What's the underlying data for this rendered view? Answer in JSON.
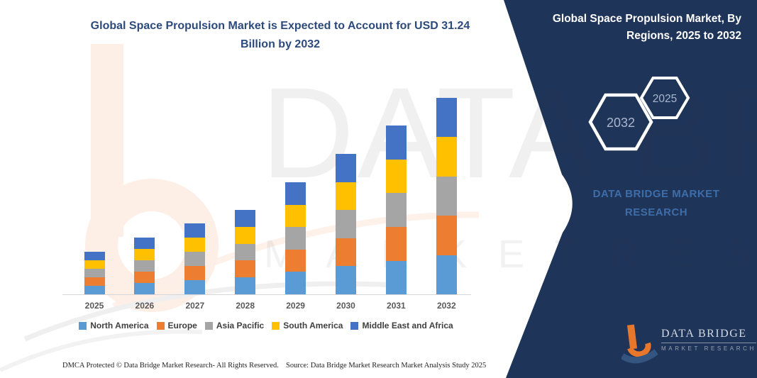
{
  "page": {
    "title_line1": "Global Space Propulsion Market is Expected to Account for USD 31.24",
    "title_line2": "Billion by 2032"
  },
  "chart_data": {
    "type": "bar",
    "stacked": true,
    "title": "Global Space Propulsion Market is Expected to Account for USD 31.24 Billion by 2032",
    "unit": "USD Billion",
    "categories": [
      "2025",
      "2026",
      "2027",
      "2028",
      "2029",
      "2030",
      "2031",
      "2032"
    ],
    "series": [
      {
        "name": "North America",
        "color": "#5B9BD5",
        "values": [
          1.35,
          1.8,
          2.25,
          2.68,
          3.55,
          4.45,
          5.35,
          6.25
        ]
      },
      {
        "name": "Europe",
        "color": "#ED7D31",
        "values": [
          1.35,
          1.8,
          2.25,
          2.68,
          3.55,
          4.45,
          5.35,
          6.25
        ]
      },
      {
        "name": "Asia Pacific",
        "color": "#A5A5A5",
        "values": [
          1.35,
          1.8,
          2.25,
          2.68,
          3.55,
          4.45,
          5.35,
          6.25
        ]
      },
      {
        "name": "South America",
        "color": "#FFC000",
        "values": [
          1.35,
          1.8,
          2.25,
          2.68,
          3.55,
          4.45,
          5.35,
          6.25
        ]
      },
      {
        "name": "Middle East and Africa",
        "color": "#4472C4",
        "values": [
          1.35,
          1.8,
          2.25,
          2.68,
          3.55,
          4.45,
          5.35,
          6.24
        ]
      }
    ],
    "totals": [
      6.75,
      9.0,
      11.25,
      13.4,
      17.75,
      22.25,
      26.75,
      31.24
    ],
    "ylim": [
      0,
      33
    ],
    "y_axis_ticks_visible": false,
    "grid": false,
    "legend_position": "bottom",
    "xlabel": "",
    "ylabel": ""
  },
  "side_panel": {
    "bg_color": "#1f3459",
    "title_line1": "Global Space Propulsion Market, By",
    "title_line2": "Regions, 2025 to 2032",
    "hexagon_large_label": "2032",
    "hexagon_small_label": "2025",
    "brand_caption_line1": "DATA BRIDGE MARKET",
    "brand_caption_line2": "RESEARCH",
    "logo_name": "DATA BRIDGE",
    "logo_subtitle": "MARKET RESEARCH"
  },
  "watermark": {
    "line1": "DATA BRIDGE",
    "line2": "M A R K E T   R E S E A R C H"
  },
  "footer": {
    "dmca": "DMCA Protected © Data Bridge Market Research-  All Rights Reserved.",
    "source": "Source: Data Bridge Market Research  Market Analysis Study 2025"
  },
  "colors": {
    "panel_navy": "#1f3459",
    "title_blue": "#2d4a7d",
    "brand_caption_blue": "#3e6da8",
    "hex_label": "#a9b6ce",
    "axis_line": "#d6d6d6",
    "logo_orange": "#e8772c",
    "logo_swoosh_blue": "#33557f"
  }
}
